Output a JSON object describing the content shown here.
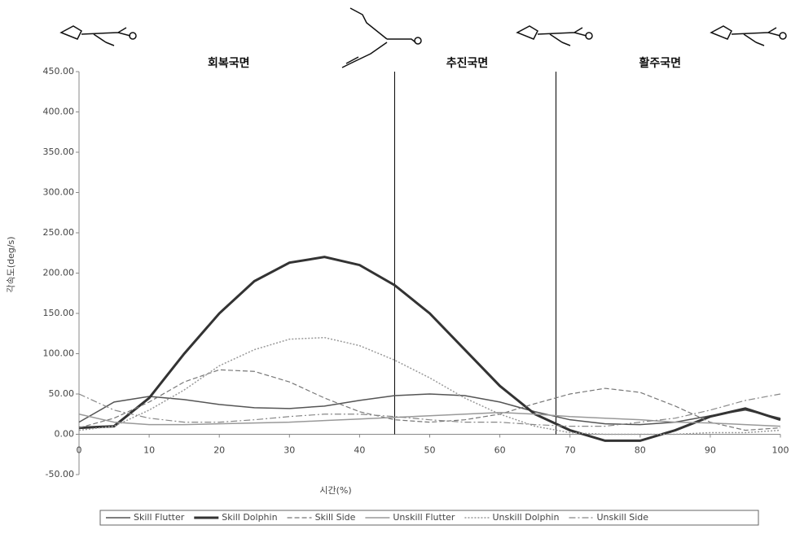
{
  "chart_data": {
    "type": "line",
    "xlabel": "시간(%)",
    "ylabel": "각속도(deg/s)",
    "phases": [
      "회복국면",
      "추진국면",
      "활주국면"
    ],
    "phase_boundaries": [
      45,
      68
    ],
    "x": [
      0,
      5,
      10,
      15,
      20,
      25,
      30,
      35,
      40,
      45,
      50,
      55,
      60,
      65,
      70,
      75,
      80,
      85,
      90,
      95,
      100
    ],
    "xlim": [
      0,
      100
    ],
    "xticks": [
      0,
      10,
      20,
      30,
      40,
      50,
      60,
      70,
      80,
      90,
      100
    ],
    "ylim": [
      -50,
      450
    ],
    "yticks": [
      {
        "value": -50,
        "label": "-50.00"
      },
      {
        "value": 0,
        "label": "0.00"
      },
      {
        "value": 50,
        "label": "50.00"
      },
      {
        "value": 100,
        "label": "100.00"
      },
      {
        "value": 150,
        "label": "150.00"
      },
      {
        "value": 200,
        "label": "200.00"
      },
      {
        "value": 250,
        "label": "250.00"
      },
      {
        "value": 300,
        "label": "300.00"
      },
      {
        "value": 350,
        "label": "350.00"
      },
      {
        "value": 400,
        "label": "400.00"
      },
      {
        "value": 450,
        "label": "450.00"
      }
    ],
    "legend": "bottom",
    "series": [
      {
        "name": "Skill Flutter",
        "color": "#555555",
        "style": "solid",
        "values": [
          15,
          40,
          47,
          43,
          37,
          33,
          32,
          35,
          42,
          48,
          50,
          48,
          40,
          28,
          18,
          13,
          12,
          15,
          23,
          30,
          20
        ]
      },
      {
        "name": "Skill Dolphin",
        "color": "#333333",
        "style": "thick",
        "values": [
          8,
          10,
          45,
          100,
          150,
          190,
          213,
          220,
          210,
          185,
          150,
          105,
          60,
          25,
          5,
          -8,
          -8,
          5,
          22,
          32,
          18
        ]
      },
      {
        "name": "Skill Side",
        "color": "#777777",
        "style": "dashed",
        "values": [
          8,
          20,
          40,
          65,
          80,
          78,
          65,
          45,
          28,
          18,
          15,
          18,
          25,
          38,
          50,
          57,
          52,
          35,
          15,
          5,
          8
        ]
      },
      {
        "name": "Unskill Flutter",
        "color": "#999999",
        "style": "solid",
        "values": [
          25,
          15,
          12,
          12,
          13,
          14,
          15,
          17,
          19,
          21,
          23,
          25,
          27,
          25,
          22,
          20,
          18,
          15,
          14,
          12,
          10
        ]
      },
      {
        "name": "Unskill Dolphin",
        "color": "#999999",
        "style": "dotted",
        "values": [
          5,
          10,
          30,
          55,
          85,
          105,
          118,
          120,
          110,
          92,
          70,
          45,
          25,
          10,
          2,
          0,
          0,
          0,
          2,
          2,
          5
        ]
      },
      {
        "name": "Unskill Side",
        "color": "#888888",
        "style": "dashdot",
        "values": [
          50,
          30,
          20,
          15,
          15,
          18,
          22,
          25,
          25,
          22,
          18,
          15,
          15,
          12,
          10,
          10,
          15,
          20,
          30,
          42,
          50
        ]
      }
    ]
  }
}
